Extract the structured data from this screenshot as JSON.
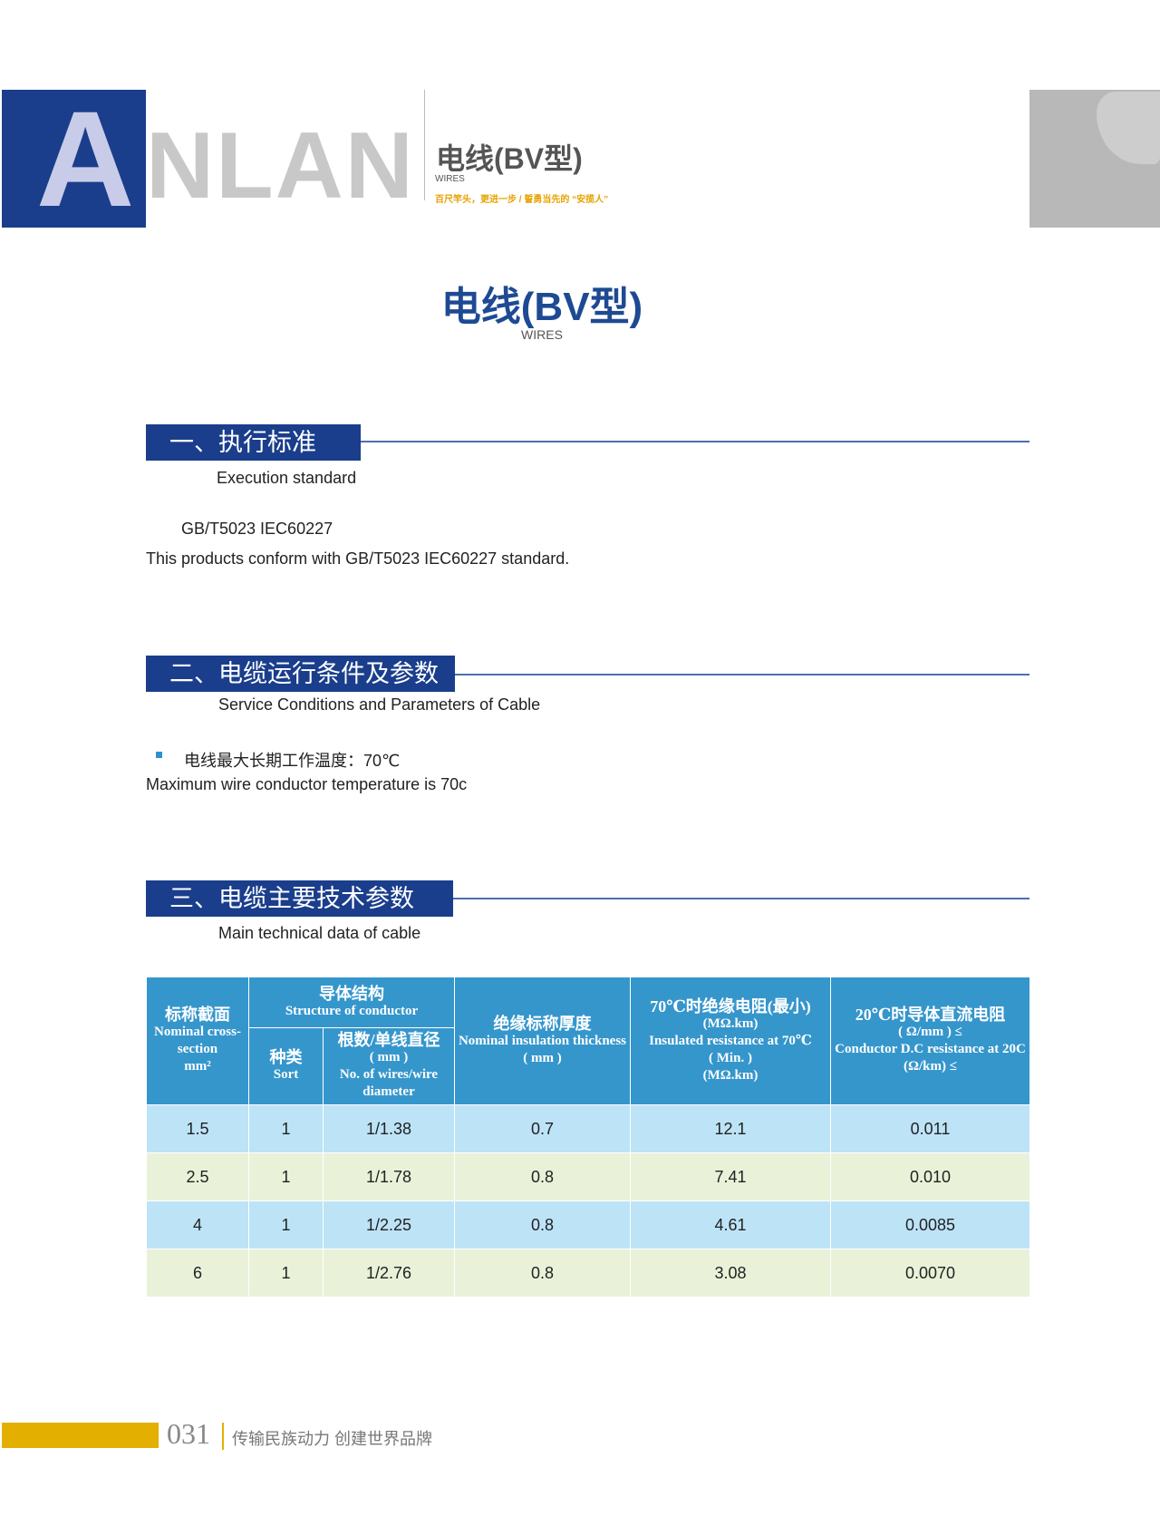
{
  "header": {
    "logo_text": "ANLAN",
    "title": "电线(BV型)",
    "subtitle": "WIRES",
    "tagline": "百尺竿头，更进一步 / 誓勇当先的 “安揽人”"
  },
  "main": {
    "title": "电线(BV型)",
    "subtitle": "WIRES"
  },
  "sections": [
    {
      "title": "一、执行标准",
      "subtitle": "Execution standard",
      "lines": [
        "GB/T5023  IEC60227",
        "This products conform with GB/T5023  IEC60227 standard."
      ]
    },
    {
      "title": "二、电缆运行条件及参数",
      "subtitle": "Service Conditions and Parameters of Cable",
      "bullet": "电线最大长期工作温度：70℃",
      "line": "Maximum wire conductor temperature is 70c"
    },
    {
      "title": "三、电缆主要技术参数",
      "subtitle": "Main technical data of cable"
    }
  ],
  "table": {
    "headers": {
      "cross_cn": "标称截面",
      "cross_en": "Nominal cross-section",
      "cross_unit": "mm²",
      "struct_cn": "导体结构",
      "struct_en": "Structure of conductor",
      "sort_cn": "种类",
      "sort_en": "Sort",
      "wires_cn": "根数/单线直径",
      "wires_unit": "( mm )",
      "wires_en": "No. of wires/wire diameter",
      "ins_cn": "绝缘标称厚度",
      "ins_en": "Nominal insulation thickness",
      "ins_unit": "( mm )",
      "res70_cn": "70℃时绝缘电阻(最小)",
      "res70_unit": "(MΩ.km)",
      "res70_en": "Insulated resistance at 70℃",
      "res70_min": "( Min. )",
      "res70_unit2": "(MΩ.km)",
      "dc20_cn": "20℃时导体直流电阻",
      "dc20_unit": "( Ω/mm ) ≤",
      "dc20_en": "Conductor D.C resistance at 20C",
      "dc20_unit2": "(Ω/km) ≤"
    },
    "rows": [
      [
        "1.5",
        "1",
        "1/1.38",
        "0.7",
        "12.1",
        "0.011"
      ],
      [
        "2.5",
        "1",
        "1/1.78",
        "0.8",
        "7.41",
        "0.010"
      ],
      [
        "4",
        "1",
        "1/2.25",
        "0.8",
        "4.61",
        "0.0085"
      ],
      [
        "6",
        "1",
        "1/2.76",
        "0.8",
        "3.08",
        "0.0070"
      ]
    ]
  },
  "footer": {
    "page": "031",
    "slogan": "传输民族动力  创建世界品牌"
  },
  "colors": {
    "brand_blue": "#1a3e8c",
    "table_header": "#3596cc",
    "row_blue": "#bde3f7",
    "row_green": "#e9f2d8",
    "accent_gold": "#e3af00"
  }
}
